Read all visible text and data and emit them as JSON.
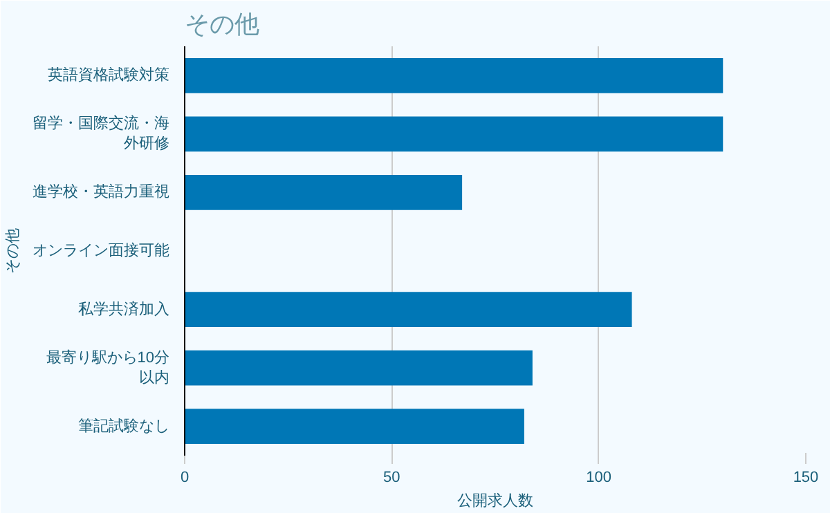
{
  "chart_data": {
    "type": "bar",
    "orientation": "horizontal",
    "title": "その他",
    "xlabel": "公開求人数",
    "ylabel": "その他",
    "categories": [
      "英語資格試験対策",
      "留学・国際交流・海外研修",
      "進学校・英語力重視",
      "オンライン面接可能",
      "私学共済加入",
      "最寄り駅から10分以内",
      "筆記試験なし"
    ],
    "values": [
      130,
      130,
      67,
      0,
      108,
      84,
      82
    ],
    "color": "#0077b6",
    "xlim": [
      0,
      150
    ],
    "xticks": [
      0,
      50,
      100,
      150
    ],
    "grid": "x"
  }
}
